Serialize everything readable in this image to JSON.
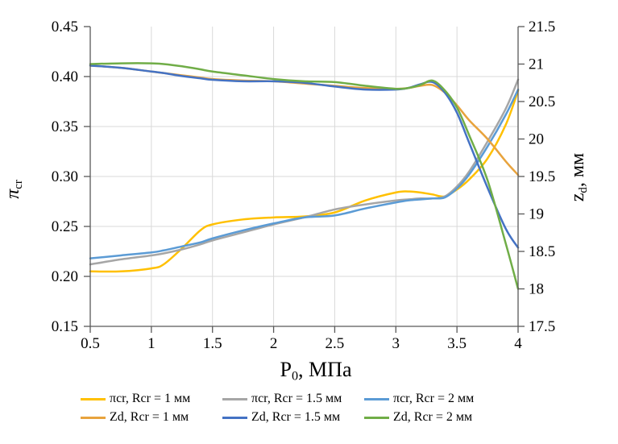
{
  "chart_data": {
    "type": "line",
    "grid": true,
    "legend_position": "bottom",
    "x": [
      0.5,
      0.75,
      1,
      1.1,
      1.25,
      1.4,
      1.5,
      1.75,
      2,
      2.25,
      2.5,
      2.75,
      3,
      3.1,
      3.2,
      3.3,
      3.4,
      3.5,
      3.6,
      3.75,
      3.9,
      4
    ],
    "x_axis": {
      "title_main": "P",
      "title_sub": "0",
      "title_rest": ", МПа",
      "min": 0.5,
      "max": 4,
      "tick_values": [
        0.5,
        1,
        1.5,
        2,
        2.5,
        3,
        3.5,
        4
      ],
      "tick_labels": [
        "0.5",
        "1",
        "1.5",
        "2",
        "2.5",
        "3",
        "3.5",
        "4"
      ],
      "gridline_values": [
        1,
        1.5,
        2,
        2.5,
        3,
        3.5
      ]
    },
    "y_left": {
      "title_main": "π",
      "title_sub": "cr",
      "title_rest": "",
      "min": 0.15,
      "max": 0.45,
      "tick_values": [
        0.45,
        0.4,
        0.35,
        0.3,
        0.25,
        0.2,
        0.15
      ],
      "tick_labels": [
        "0.45",
        "0.40",
        "0.35",
        "0.30",
        "0.25",
        "0.20",
        "0.15"
      ],
      "gridline_values": [
        0.2,
        0.25,
        0.3,
        0.35,
        0.4
      ]
    },
    "y_right": {
      "title_main": "z",
      "title_sub": "d",
      "title_rest": ", мм",
      "min": 17.5,
      "max": 21.5,
      "tick_values": [
        21.5,
        21,
        20.5,
        20,
        19.5,
        19,
        18.5,
        18,
        17.5
      ],
      "tick_labels": [
        "21.5",
        "21",
        "20.5",
        "20",
        "19.5",
        "19",
        "18.5",
        "18",
        "17.5"
      ],
      "gridline_values": []
    },
    "series": [
      {
        "name": "πcr, Rcr = 1 мм",
        "axis": "left",
        "color": "#FFC000",
        "values": [
          0.205,
          0.205,
          0.208,
          0.212,
          0.228,
          0.246,
          0.252,
          0.257,
          0.259,
          0.26,
          0.264,
          0.276,
          0.284,
          0.285,
          0.284,
          0.282,
          0.28,
          0.287,
          0.297,
          0.318,
          0.352,
          0.386
        ]
      },
      {
        "name": "πcr, Rcr = 1.5 мм",
        "axis": "left",
        "color": "#A6A6A6",
        "values": [
          0.212,
          0.217,
          0.221,
          0.223,
          0.227,
          0.232,
          0.236,
          0.244,
          0.252,
          0.259,
          0.267,
          0.272,
          0.276,
          0.277,
          0.278,
          0.278,
          0.28,
          0.29,
          0.305,
          0.335,
          0.368,
          0.397
        ]
      },
      {
        "name": "πcr, Rcr = 2 мм",
        "axis": "left",
        "color": "#5B9BD5",
        "values": [
          0.218,
          0.221,
          0.224,
          0.226,
          0.23,
          0.234,
          0.238,
          0.246,
          0.253,
          0.259,
          0.261,
          0.268,
          0.274,
          0.276,
          0.277,
          0.278,
          0.279,
          0.288,
          0.302,
          0.33,
          0.362,
          0.387
        ]
      },
      {
        "name": "Zd, Rcr = 1 мм",
        "axis": "right",
        "color": "#E8A33D",
        "values": [
          20.98,
          20.95,
          20.9,
          20.88,
          20.85,
          20.82,
          20.8,
          20.78,
          20.77,
          20.74,
          20.71,
          20.68,
          20.67,
          20.68,
          20.71,
          20.72,
          20.62,
          20.45,
          20.25,
          20.0,
          19.7,
          19.52
        ]
      },
      {
        "name": "Zd, Rcr = 1.5 мм",
        "axis": "right",
        "color": "#4472C4",
        "values": [
          20.98,
          20.95,
          20.9,
          20.88,
          20.84,
          20.81,
          20.79,
          20.77,
          20.77,
          20.75,
          20.7,
          20.66,
          20.66,
          20.68,
          20.73,
          20.76,
          20.62,
          20.35,
          19.95,
          19.35,
          18.8,
          18.55
        ]
      },
      {
        "name": "Zd, Rcr = 2 мм",
        "axis": "right",
        "color": "#70AD47",
        "values": [
          21.0,
          21.01,
          21.01,
          21.0,
          20.97,
          20.93,
          20.9,
          20.85,
          20.8,
          20.77,
          20.76,
          20.71,
          20.67,
          20.68,
          20.72,
          20.78,
          20.65,
          20.42,
          20.05,
          19.45,
          18.6,
          18.0
        ]
      }
    ]
  }
}
